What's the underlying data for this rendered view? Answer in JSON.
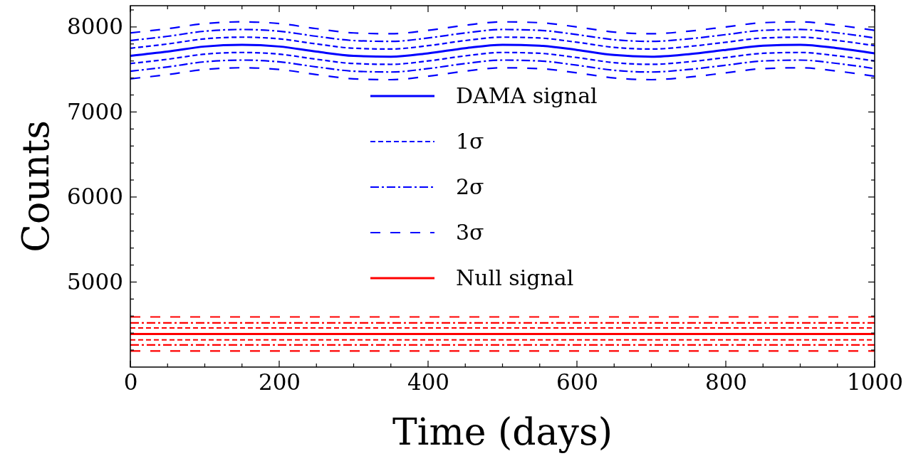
{
  "chart_data": {
    "type": "line",
    "xlabel": "Time (days)",
    "ylabel": "Counts",
    "xlim": [
      0,
      1000
    ],
    "ylim": [
      4000,
      8250
    ],
    "xticks": [
      0,
      {
        "value": 50,
        "label": null
      },
      {
        "value": 100,
        "label": null
      },
      {
        "value": 150,
        "label": null
      },
      200,
      {
        "value": 250,
        "label": null
      },
      {
        "value": 300,
        "label": null
      },
      {
        "value": 350,
        "label": null
      },
      400,
      {
        "value": 450,
        "label": null
      },
      {
        "value": 500,
        "label": null
      },
      {
        "value": 550,
        "label": null
      },
      600,
      {
        "value": 650,
        "label": null
      },
      {
        "value": 700,
        "label": null
      },
      {
        "value": 750,
        "label": null
      },
      800,
      {
        "value": 850,
        "label": null
      },
      {
        "value": 900,
        "label": null
      },
      {
        "value": 950,
        "label": null
      },
      1000
    ],
    "yticks": [
      {
        "value": 4200,
        "label": null
      },
      {
        "value": 4400,
        "label": null
      },
      {
        "value": 4600,
        "label": null
      },
      {
        "value": 4800,
        "label": null
      },
      5000,
      {
        "value": 5200,
        "label": null
      },
      {
        "value": 5400,
        "label": null
      },
      {
        "value": 5600,
        "label": null
      },
      {
        "value": 5800,
        "label": null
      },
      6000,
      {
        "value": 6200,
        "label": null
      },
      {
        "value": 6400,
        "label": null
      },
      {
        "value": 6600,
        "label": null
      },
      {
        "value": 6800,
        "label": null
      },
      7000,
      {
        "value": 7200,
        "label": null
      },
      {
        "value": 7400,
        "label": null
      },
      {
        "value": 7600,
        "label": null
      },
      {
        "value": 7800,
        "label": null
      },
      8000,
      {
        "value": 8200,
        "label": null
      }
    ],
    "grid": false,
    "legend": "center",
    "x": [
      0,
      50,
      100,
      150,
      200,
      250,
      300,
      350,
      400,
      450,
      500,
      550,
      600,
      650,
      700,
      750,
      800,
      850,
      900,
      950,
      1000
    ],
    "series": [
      {
        "name": "DAMA signal",
        "color": "#0000ff",
        "line_style": "solid",
        "values": [
          7660,
          7710,
          7770,
          7790,
          7770,
          7710,
          7660,
          7650,
          7690,
          7750,
          7790,
          7780,
          7730,
          7670,
          7650,
          7680,
          7730,
          7780,
          7790,
          7750,
          7690
        ]
      },
      {
        "name": "1σ",
        "color": "#0000ff",
        "line_style": "dashed",
        "values": [
          7750,
          7800,
          7860,
          7880,
          7860,
          7800,
          7750,
          7740,
          7780,
          7840,
          7880,
          7870,
          7820,
          7760,
          7740,
          7770,
          7820,
          7870,
          7880,
          7840,
          7780
        ]
      },
      {
        "color": "#0000ff",
        "line_style": "dashed",
        "values": [
          7570,
          7620,
          7680,
          7700,
          7680,
          7620,
          7570,
          7560,
          7600,
          7660,
          7700,
          7690,
          7640,
          7580,
          7560,
          7590,
          7640,
          7690,
          7700,
          7660,
          7600
        ]
      },
      {
        "name": "2σ",
        "color": "#0000ff",
        "line_style": "dashdot",
        "values": [
          7840,
          7890,
          7950,
          7970,
          7950,
          7890,
          7840,
          7830,
          7870,
          7930,
          7970,
          7960,
          7910,
          7850,
          7830,
          7860,
          7910,
          7960,
          7970,
          7930,
          7870
        ]
      },
      {
        "color": "#0000ff",
        "line_style": "dashdot",
        "values": [
          7480,
          7530,
          7590,
          7610,
          7590,
          7530,
          7480,
          7470,
          7510,
          7570,
          7610,
          7600,
          7550,
          7490,
          7470,
          7500,
          7550,
          7600,
          7610,
          7570,
          7510
        ]
      },
      {
        "name": "3σ",
        "color": "#0000ff",
        "line_style": "longdashed",
        "values": [
          7930,
          7980,
          8040,
          8060,
          8040,
          7980,
          7930,
          7920,
          7960,
          8020,
          8060,
          8050,
          8000,
          7940,
          7920,
          7950,
          8000,
          8050,
          8060,
          8020,
          7960
        ]
      },
      {
        "color": "#0000ff",
        "line_style": "longdashed",
        "values": [
          7390,
          7440,
          7500,
          7520,
          7500,
          7440,
          7390,
          7380,
          7420,
          7480,
          7520,
          7510,
          7460,
          7400,
          7380,
          7410,
          7460,
          7510,
          7520,
          7480,
          7420
        ]
      },
      {
        "name": "Null signal",
        "color": "#ff0000",
        "line_style": "solid",
        "values": [
          4390,
          4390,
          4390,
          4390,
          4390,
          4390,
          4390,
          4390,
          4390,
          4390,
          4390,
          4390,
          4390,
          4390,
          4390,
          4390,
          4390,
          4390,
          4390,
          4390,
          4390
        ]
      },
      {
        "color": "#ff0000",
        "line_style": "dashed",
        "values": [
          4460,
          4460,
          4460,
          4460,
          4460,
          4460,
          4460,
          4460,
          4460,
          4460,
          4460,
          4460,
          4460,
          4460,
          4460,
          4460,
          4460,
          4460,
          4460,
          4460,
          4460
        ]
      },
      {
        "color": "#ff0000",
        "line_style": "dashed",
        "values": [
          4320,
          4320,
          4320,
          4320,
          4320,
          4320,
          4320,
          4320,
          4320,
          4320,
          4320,
          4320,
          4320,
          4320,
          4320,
          4320,
          4320,
          4320,
          4320,
          4320,
          4320
        ]
      },
      {
        "color": "#ff0000",
        "line_style": "dashdot",
        "values": [
          4520,
          4520,
          4520,
          4520,
          4520,
          4520,
          4520,
          4520,
          4520,
          4520,
          4520,
          4520,
          4520,
          4520,
          4520,
          4520,
          4520,
          4520,
          4520,
          4520,
          4520
        ]
      },
      {
        "color": "#ff0000",
        "line_style": "dashdot",
        "values": [
          4260,
          4260,
          4260,
          4260,
          4260,
          4260,
          4260,
          4260,
          4260,
          4260,
          4260,
          4260,
          4260,
          4260,
          4260,
          4260,
          4260,
          4260,
          4260,
          4260,
          4260
        ]
      },
      {
        "color": "#ff0000",
        "line_style": "longdashed",
        "values": [
          4590,
          4590,
          4590,
          4590,
          4590,
          4590,
          4590,
          4590,
          4590,
          4590,
          4590,
          4590,
          4590,
          4590,
          4590,
          4590,
          4590,
          4590,
          4590,
          4590,
          4590
        ]
      },
      {
        "color": "#ff0000",
        "line_style": "longdashed",
        "values": [
          4190,
          4190,
          4190,
          4190,
          4190,
          4190,
          4190,
          4190,
          4190,
          4190,
          4190,
          4190,
          4190,
          4190,
          4190,
          4190,
          4190,
          4190,
          4190,
          4190,
          4190
        ]
      }
    ]
  }
}
